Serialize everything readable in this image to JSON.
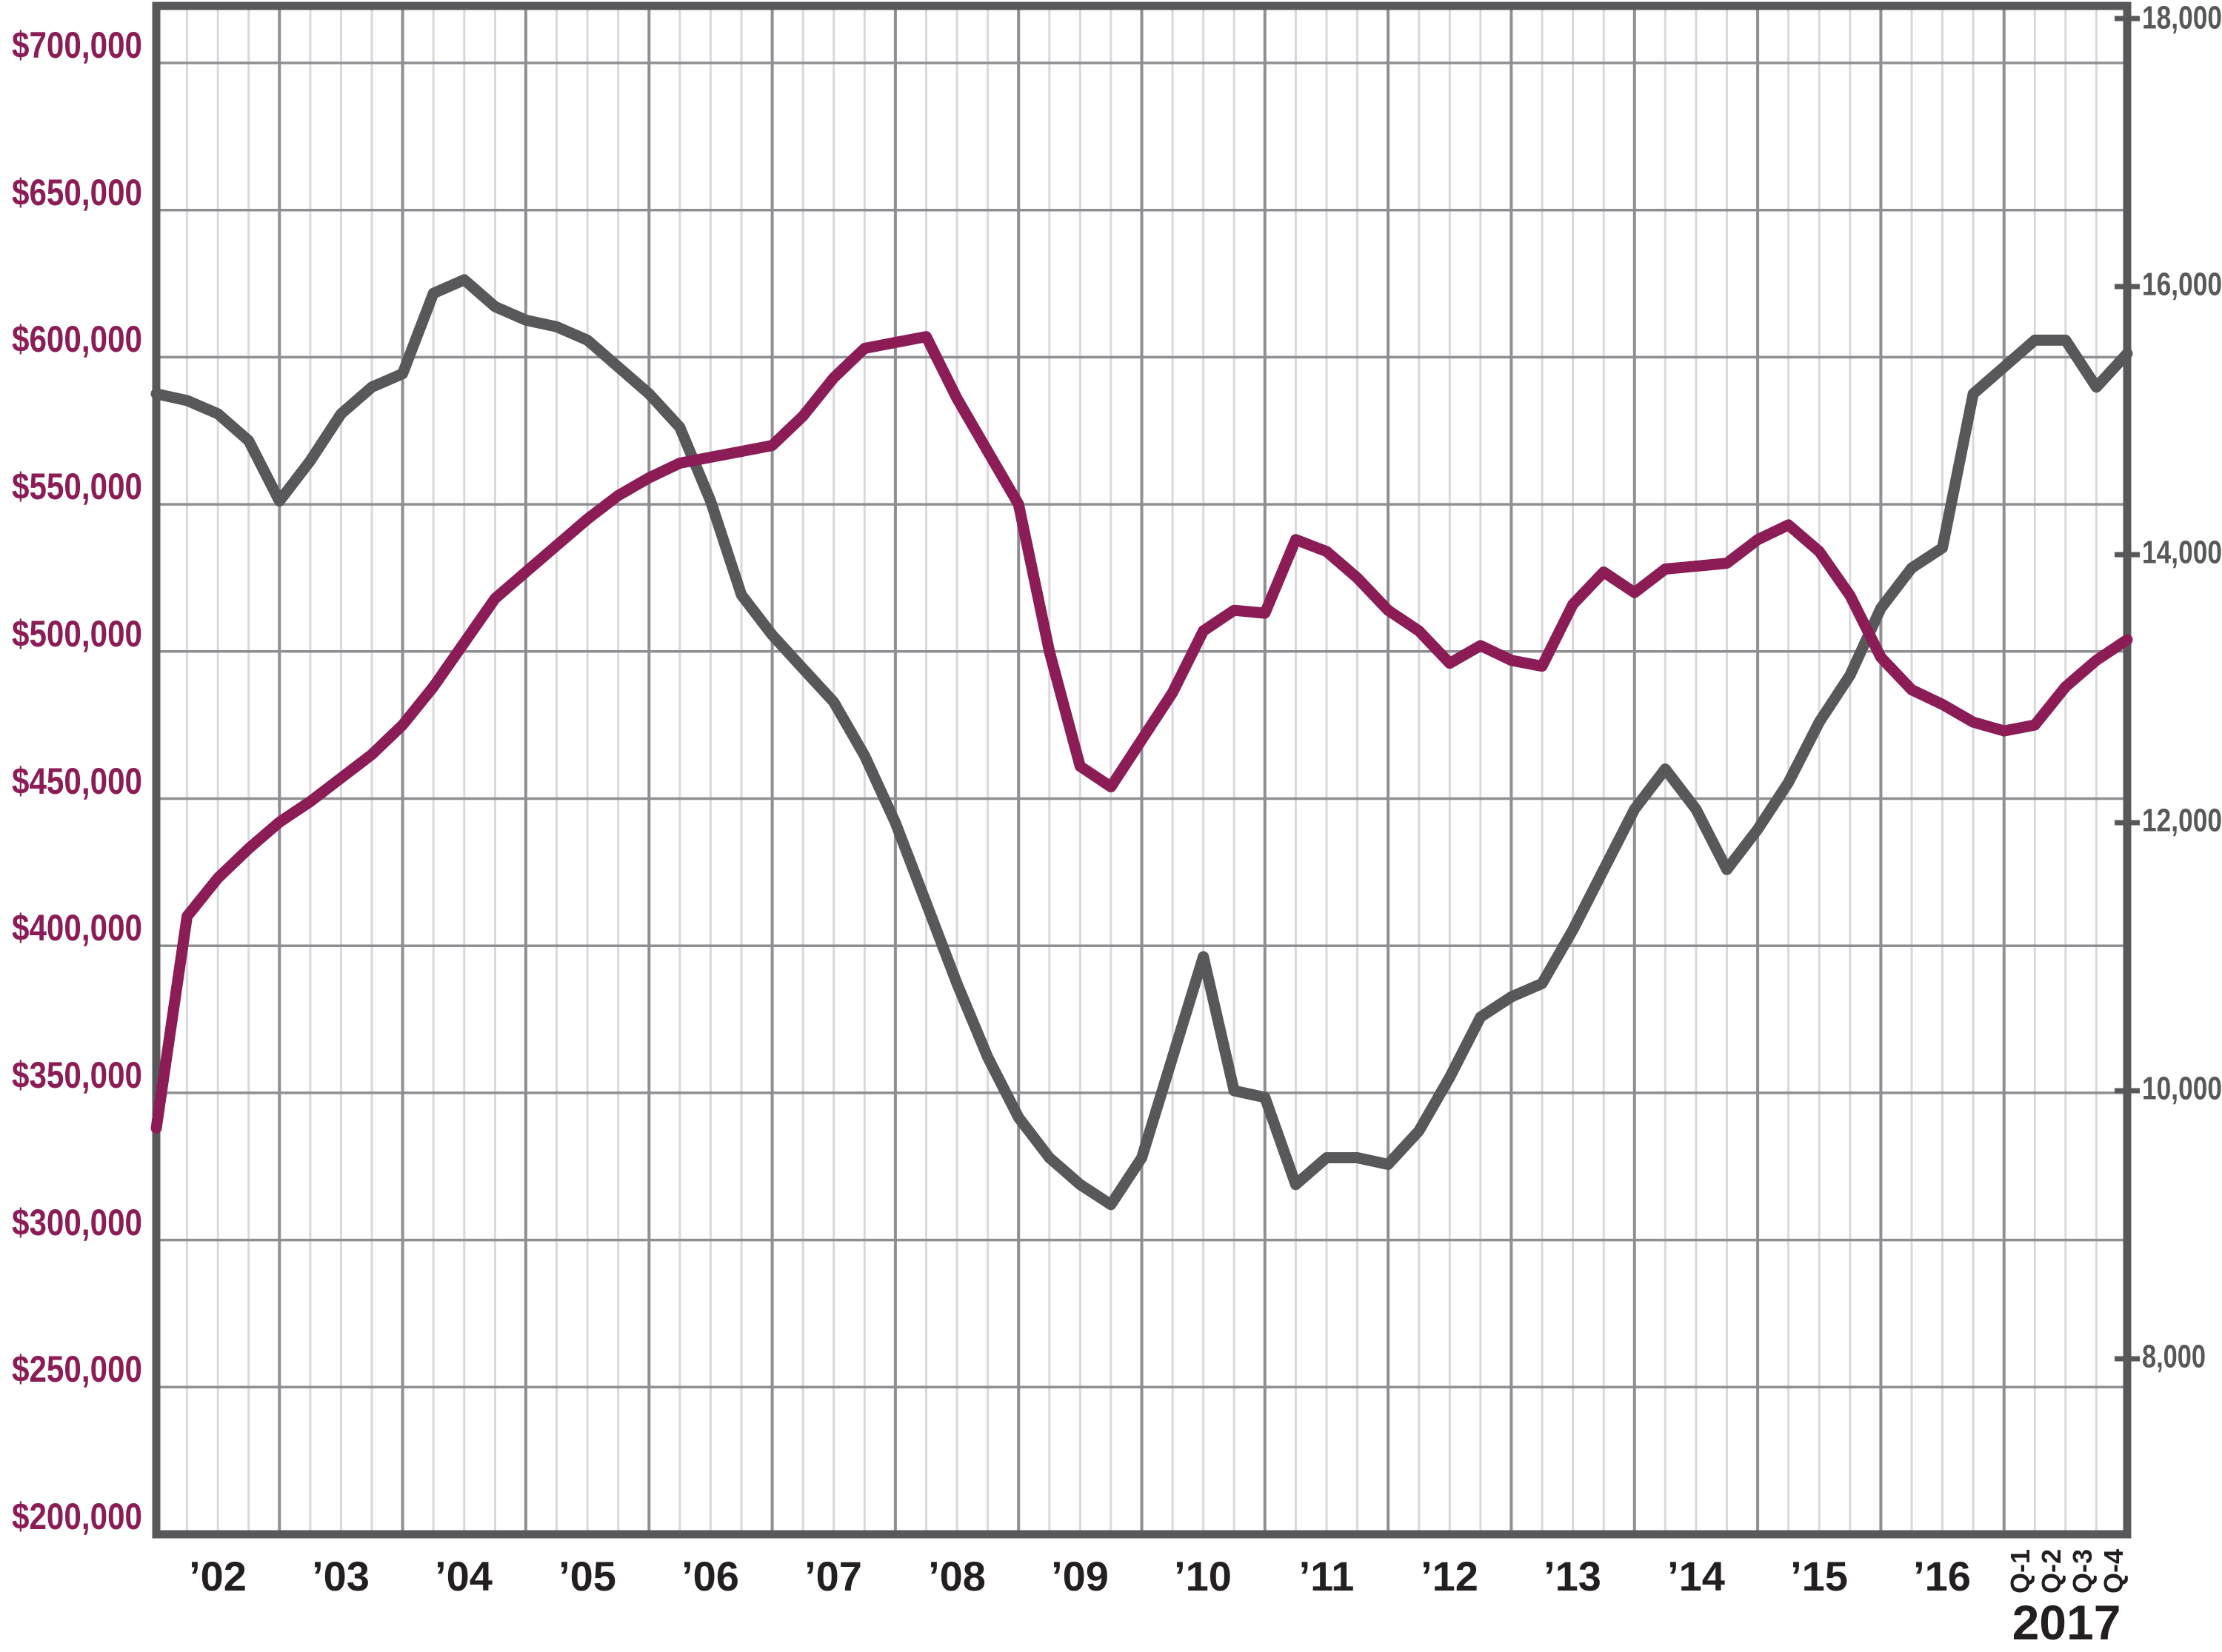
{
  "chart_data": {
    "type": "line",
    "x_axis": {
      "year_labels": [
        "’02",
        "’03",
        "’04",
        "’05",
        "’06",
        "’07",
        "’08",
        "’09",
        "’10",
        "’11",
        "’12",
        "’13",
        "’14",
        "’15",
        "’16"
      ],
      "quarter_labels_2017": [
        "Q-1",
        "Q-2",
        "Q-3",
        "Q-4"
      ],
      "year_2017_label": "2017"
    },
    "left_axis": {
      "tick_labels": [
        "$700,000",
        "$650,000",
        "$600,000",
        "$550,000",
        "$500,000",
        "$450,000",
        "$400,000",
        "$350,000",
        "$300,000",
        "$250,000",
        "$200,000"
      ],
      "min": 200000,
      "max": 700000,
      "step": 50000,
      "color": "#8B1C56"
    },
    "right_axis": {
      "tick_labels": [
        "18,000",
        "16,000",
        "14,000",
        "12,000",
        "10,000",
        "8,000"
      ],
      "tick_values": [
        18000,
        16000,
        14000,
        12000,
        10000,
        8000
      ],
      "color": "#58585B"
    },
    "grid": {
      "minor_color": "#D9D9DB",
      "major_color": "#8F8F93",
      "border_color": "#58585B"
    },
    "quarters": [
      "2001-Q4",
      "2002-Q1",
      "2002-Q2",
      "2002-Q3",
      "2002-Q4",
      "2003-Q1",
      "2003-Q2",
      "2003-Q3",
      "2003-Q4",
      "2004-Q1",
      "2004-Q2",
      "2004-Q3",
      "2004-Q4",
      "2005-Q1",
      "2005-Q2",
      "2005-Q3",
      "2005-Q4",
      "2006-Q1",
      "2006-Q2",
      "2006-Q3",
      "2006-Q4",
      "2007-Q1",
      "2007-Q2",
      "2007-Q3",
      "2007-Q4",
      "2008-Q1",
      "2008-Q2",
      "2008-Q3",
      "2008-Q4",
      "2009-Q1",
      "2009-Q2",
      "2009-Q3",
      "2009-Q4",
      "2010-Q1",
      "2010-Q2",
      "2010-Q3",
      "2010-Q4",
      "2011-Q1",
      "2011-Q2",
      "2011-Q3",
      "2011-Q4",
      "2012-Q1",
      "2012-Q2",
      "2012-Q3",
      "2012-Q4",
      "2013-Q1",
      "2013-Q2",
      "2013-Q3",
      "2013-Q4",
      "2014-Q1",
      "2014-Q2",
      "2014-Q3",
      "2014-Q4",
      "2015-Q1",
      "2015-Q2",
      "2015-Q3",
      "2015-Q4",
      "2016-Q1",
      "2016-Q2",
      "2016-Q3",
      "2016-Q4",
      "2017-Q1",
      "2017-Q2",
      "2017-Q3",
      "2017-Q4"
    ],
    "series": [
      {
        "name": "maroon-line",
        "axis": "left",
        "color": "#8B1C56",
        "values": [
          338000,
          410000,
          423000,
          433000,
          442000,
          449000,
          457000,
          465000,
          475000,
          488000,
          503000,
          518000,
          527000,
          536000,
          545000,
          553000,
          559000,
          564000,
          566000,
          568000,
          570000,
          580000,
          593000,
          603000,
          605000,
          607000,
          586000,
          568000,
          550000,
          500000,
          461000,
          454000,
          470000,
          486000,
          507000,
          514000,
          513000,
          538000,
          534000,
          525000,
          514000,
          507000,
          496000,
          502000,
          497000,
          495000,
          516000,
          527000,
          520000,
          528000,
          529000,
          530000,
          538000,
          543000,
          534000,
          519000,
          498000,
          487000,
          482000,
          476000,
          473000,
          475000,
          488000,
          497000,
          504000
        ]
      },
      {
        "name": "gray-line",
        "axis": "right",
        "color": "#58585B",
        "values": [
          15200,
          15150,
          15050,
          14850,
          14400,
          14700,
          15050,
          15250,
          15350,
          15950,
          16050,
          15850,
          15750,
          15700,
          15600,
          15400,
          15200,
          14950,
          14400,
          13700,
          13400,
          13150,
          12900,
          12500,
          12000,
          11400,
          10800,
          10250,
          9800,
          9500,
          9300,
          9150,
          9500,
          10250,
          11000,
          10000,
          9950,
          9300,
          9500,
          9500,
          9450,
          9700,
          10100,
          10550,
          10700,
          10800,
          11200,
          11650,
          12100,
          12400,
          12100,
          11650,
          11950,
          12300,
          12750,
          13100,
          13600,
          13900,
          14050,
          15200,
          15400,
          15600,
          15600,
          15250,
          15500
        ]
      }
    ]
  }
}
